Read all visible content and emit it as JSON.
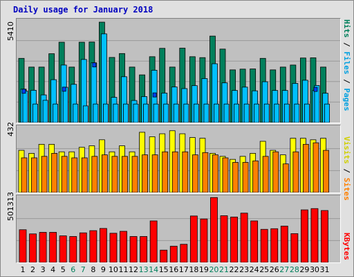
{
  "title": "Daily usage for January 2018",
  "colors": {
    "hits": "#00805c",
    "files": "#00c0ff",
    "pages": "#0040ff",
    "visits": "#ffff00",
    "sites": "#ff8000",
    "kbytes": "#ff0000",
    "weekend_label": "#00805c",
    "weekday_label": "#000000",
    "panel_bg": "#c0c0c0",
    "title": "#0000c0"
  },
  "labels": {
    "top_max": "5410",
    "mid_max": "432",
    "bot_max": "501313",
    "top_right": {
      "pages": "Pages",
      "sep1": " / ",
      "files": "Files",
      "sep2": " / ",
      "hits": "Hits"
    },
    "mid_right": {
      "sites": "Sites",
      "sep": " / ",
      "visits": "Visits"
    },
    "bot_right": {
      "kbytes": "KBytes"
    }
  },
  "chart_data": [
    {
      "type": "bar",
      "title": "Daily usage for January 2018",
      "panel": "hits-files-pages",
      "ylim": [
        0,
        5410
      ],
      "categories": [
        "1",
        "2",
        "3",
        "4",
        "5",
        "6",
        "7",
        "8",
        "9",
        "10",
        "11",
        "12",
        "13",
        "14",
        "15",
        "16",
        "17",
        "18",
        "19",
        "20",
        "21",
        "22",
        "23",
        "24",
        "25",
        "26",
        "27",
        "28",
        "29",
        "30",
        "31"
      ],
      "series": [
        {
          "name": "Hits",
          "values": [
            3460,
            2990,
            2990,
            3710,
            4330,
            2990,
            4330,
            4340,
            5410,
            3510,
            3720,
            2990,
            2570,
            3550,
            4000,
            2990,
            4010,
            3550,
            3500,
            4660,
            3960,
            2840,
            2880,
            2890,
            3460,
            2840,
            2990,
            3100,
            3480,
            3490,
            2990
          ]
        },
        {
          "name": "Files",
          "values": [
            1800,
            1740,
            1490,
            2310,
            3100,
            2060,
            3400,
            3220,
            4780,
            1360,
            2470,
            1190,
            1400,
            2820,
            1590,
            1920,
            1830,
            1990,
            2370,
            3170,
            2140,
            1730,
            1910,
            1710,
            2200,
            1730,
            1730,
            2110,
            2280,
            1730,
            1580
          ]
        },
        {
          "name": "Pages",
          "values": [
            1700,
            1000,
            1200,
            1000,
            1900,
            1000,
            900,
            1000,
            1000,
            1000,
            1000,
            1000,
            1000,
            1000,
            1000,
            1000,
            1000,
            1000,
            1000,
            1000,
            1000,
            1000,
            1000,
            1000,
            1000,
            1000,
            1000,
            1000,
            1000,
            2000,
            1000
          ]
        }
      ]
    },
    {
      "type": "bar",
      "panel": "visits-sites",
      "ylim": [
        0,
        432
      ],
      "categories": [
        "1",
        "2",
        "3",
        "4",
        "5",
        "6",
        "7",
        "8",
        "9",
        "10",
        "11",
        "12",
        "13",
        "14",
        "15",
        "16",
        "17",
        "18",
        "19",
        "20",
        "21",
        "22",
        "23",
        "24",
        "25",
        "26",
        "27",
        "28",
        "29",
        "30",
        "31"
      ],
      "series": [
        {
          "name": "Visits",
          "values": [
            280,
            260,
            320,
            320,
            270,
            270,
            300,
            310,
            350,
            270,
            310,
            270,
            400,
            370,
            390,
            410,
            390,
            365,
            360,
            260,
            240,
            220,
            240,
            260,
            340,
            280,
            250,
            360,
            360,
            350,
            360
          ]
        },
        {
          "name": "Sites",
          "values": [
            230,
            230,
            240,
            260,
            240,
            230,
            230,
            240,
            250,
            240,
            240,
            240,
            250,
            250,
            270,
            270,
            270,
            250,
            265,
            250,
            230,
            200,
            200,
            210,
            240,
            270,
            190,
            270,
            320,
            330,
            280
          ]
        }
      ]
    },
    {
      "type": "bar",
      "panel": "kbytes",
      "ylim": [
        0,
        501313
      ],
      "categories": [
        "1",
        "2",
        "3",
        "4",
        "5",
        "6",
        "7",
        "8",
        "9",
        "10",
        "11",
        "12",
        "13",
        "14",
        "15",
        "16",
        "17",
        "18",
        "19",
        "20",
        "21",
        "22",
        "23",
        "24",
        "25",
        "26",
        "27",
        "28",
        "29",
        "30",
        "31"
      ],
      "series": [
        {
          "name": "KBytes",
          "values": [
            252000,
            220000,
            232000,
            232000,
            205000,
            200000,
            228000,
            245000,
            262000,
            225000,
            240000,
            200000,
            200000,
            320000,
            95000,
            125000,
            140000,
            358000,
            335000,
            500000,
            360000,
            350000,
            380000,
            320000,
            255000,
            260000,
            280000,
            222000,
            405000,
            415000,
            400000
          ]
        }
      ]
    }
  ],
  "days": [
    {
      "label": "1",
      "weekend": false
    },
    {
      "label": "2",
      "weekend": false
    },
    {
      "label": "3",
      "weekend": false
    },
    {
      "label": "4",
      "weekend": false
    },
    {
      "label": "5",
      "weekend": false
    },
    {
      "label": "6",
      "weekend": true
    },
    {
      "label": "7",
      "weekend": true
    },
    {
      "label": "8",
      "weekend": false
    },
    {
      "label": "9",
      "weekend": false
    },
    {
      "label": "10",
      "weekend": false
    },
    {
      "label": "11",
      "weekend": false
    },
    {
      "label": "12",
      "weekend": false
    },
    {
      "label": "13",
      "weekend": true
    },
    {
      "label": "14",
      "weekend": true
    },
    {
      "label": "15",
      "weekend": false
    },
    {
      "label": "16",
      "weekend": false
    },
    {
      "label": "17",
      "weekend": false
    },
    {
      "label": "18",
      "weekend": false
    },
    {
      "label": "19",
      "weekend": false
    },
    {
      "label": "20",
      "weekend": true
    },
    {
      "label": "21",
      "weekend": true
    },
    {
      "label": "22",
      "weekend": false
    },
    {
      "label": "23",
      "weekend": false
    },
    {
      "label": "24",
      "weekend": false
    },
    {
      "label": "25",
      "weekend": false
    },
    {
      "label": "26",
      "weekend": false
    },
    {
      "label": "27",
      "weekend": true
    },
    {
      "label": "28",
      "weekend": true
    },
    {
      "label": "29",
      "weekend": false
    },
    {
      "label": "30",
      "weekend": false
    },
    {
      "label": "31",
      "weekend": false
    }
  ]
}
